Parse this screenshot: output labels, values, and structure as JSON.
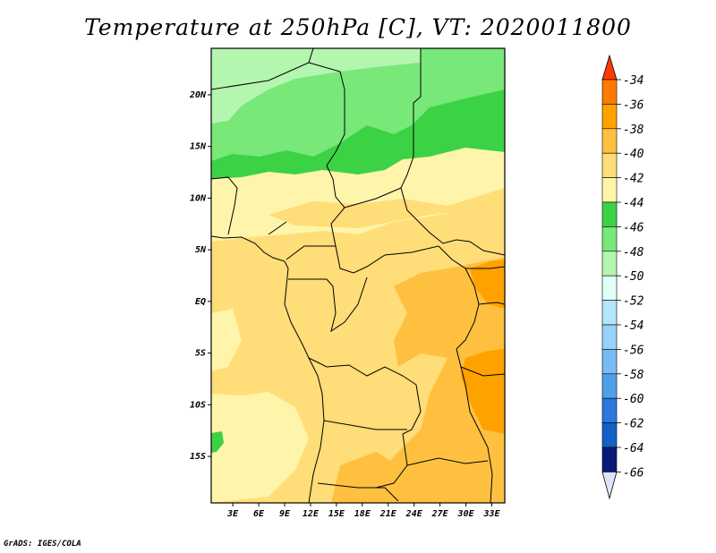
{
  "title": "Temperature at 250hPa [C], VT: 2020011800",
  "credit": "GrADS: IGES/COLA",
  "map": {
    "lon_labels": [
      "3E",
      "6E",
      "9E",
      "12E",
      "15E",
      "18E",
      "21E",
      "24E",
      "27E",
      "30E",
      "33E"
    ],
    "lat_labels": [
      "20N",
      "15N",
      "10N",
      "5N",
      "EQ",
      "5S",
      "10S",
      "15S"
    ],
    "lon_range": [
      0.5,
      34.5
    ],
    "lat_range": [
      -19.5,
      24.5
    ]
  },
  "colorbar": {
    "labels": [
      "-34",
      "-36",
      "-38",
      "-40",
      "-42",
      "-44",
      "-46",
      "-48",
      "-50",
      "-52",
      "-54",
      "-56",
      "-58",
      "-60",
      "-62",
      "-64",
      "-66"
    ],
    "colors": [
      "#ff3a00",
      "#ff7a00",
      "#ffa200",
      "#ffc040",
      "#ffdd78",
      "#fff5aa",
      "#3cd246",
      "#78e878",
      "#b4f5b0",
      "#e0fff8",
      "#b4e6fb",
      "#96d2fa",
      "#78baf4",
      "#50a0e8",
      "#2c78dc",
      "#1460c8",
      "#0a1a78",
      "#e0e4fa"
    ]
  },
  "colors": {
    "background": "#ffffff",
    "frame": "#000000",
    "border_lines": "#000000"
  }
}
